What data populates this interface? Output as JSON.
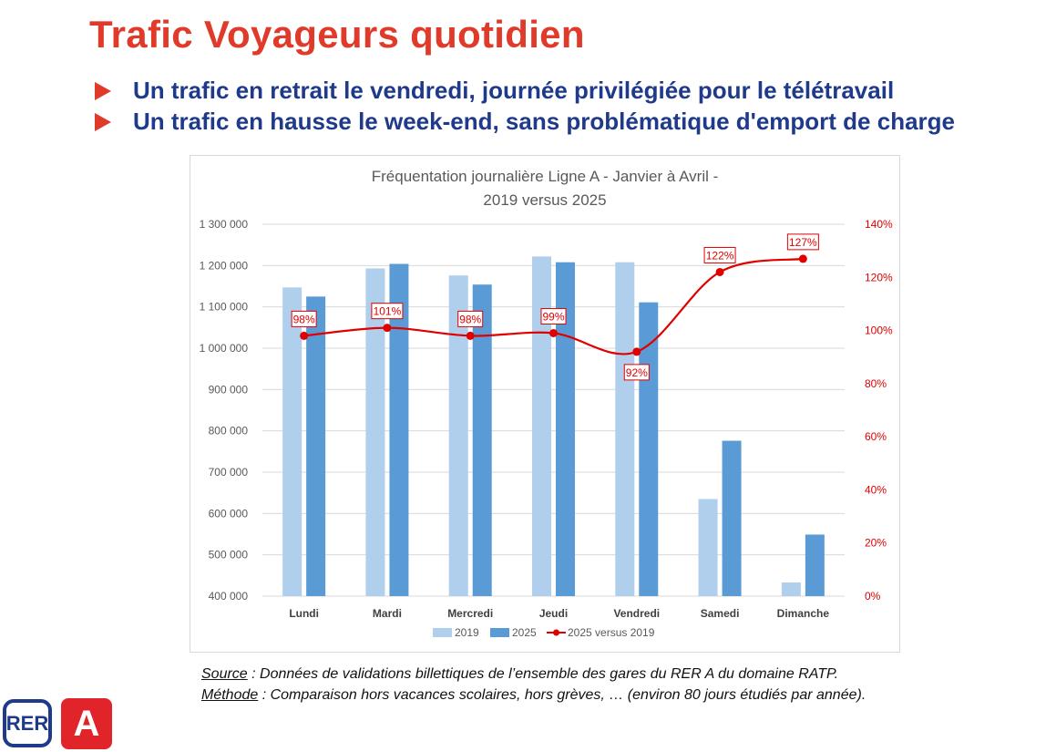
{
  "page": {
    "title": "Trafic Voyageurs quotidien",
    "bullets": [
      "Un trafic en retrait le vendredi, journée privilégiée pour le télétravail",
      "Un trafic en hausse le week-end, sans problématique d'emport de charge"
    ],
    "source_label": "Source",
    "source_text": " : Données de validations billettiques de l’ensemble des gares du RER A du domaine RATP.",
    "method_label": "Méthode",
    "method_text": " : Comparaison hors vacances scolaires, hors grèves, … (environ 80 jours étudiés par année).",
    "logo_rer": "RER",
    "logo_line": "A"
  },
  "colors": {
    "title": "#e03a2a",
    "bullet_text": "#1f3a8a",
    "series_2019": "#b0cfec",
    "series_2025": "#5b9bd5",
    "ratio_line": "#e00000"
  },
  "chart_data": {
    "type": "bar",
    "title_lines": [
      "Fréquentation journalière Ligne A - Janvier à Avril -",
      "2019 versus 2025"
    ],
    "categories": [
      "Lundi",
      "Mardi",
      "Mercredi",
      "Jeudi",
      "Vendredi",
      "Samedi",
      "Dimanche"
    ],
    "series": [
      {
        "name": "2019",
        "values": [
          1147000,
          1193000,
          1176000,
          1222000,
          1208000,
          635000,
          433000
        ]
      },
      {
        "name": "2025",
        "values": [
          1125000,
          1204000,
          1154000,
          1208000,
          1111000,
          776000,
          549000
        ]
      }
    ],
    "line_series": {
      "name": "2025 versus 2019",
      "values": [
        98,
        101,
        98,
        99,
        92,
        122,
        127
      ],
      "labels": [
        "98%",
        "101%",
        "98%",
        "99%",
        "92%",
        "122%",
        "127%"
      ]
    },
    "ylim": [
      400000,
      1300000
    ],
    "y_ticks": [
      "400 000",
      "500 000",
      "600 000",
      "700 000",
      "800 000",
      "900 000",
      "1 000 000",
      "1 100 000",
      "1 200 000",
      "1 300 000"
    ],
    "y2lim": [
      0,
      140
    ],
    "y2_ticks": [
      "0%",
      "20%",
      "40%",
      "60%",
      "80%",
      "100%",
      "120%",
      "140%"
    ],
    "legend": [
      "2019",
      "2025",
      "2025 versus 2019"
    ],
    "legend_position": "bottom",
    "grid": true
  }
}
